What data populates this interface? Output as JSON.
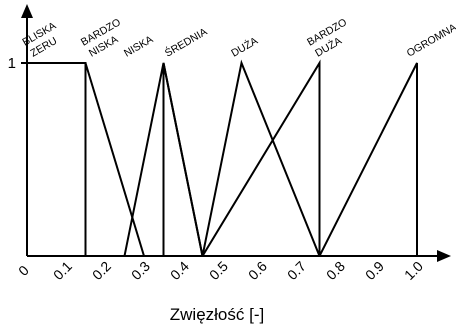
{
  "chart_data": {
    "type": "line",
    "xlabel": "Zwięzłość [-]",
    "xlim": [
      0,
      1
    ],
    "ylim": [
      0,
      1
    ],
    "x_ticks": [
      "0",
      "0.1",
      "0.2",
      "0.3",
      "0.4",
      "0.5",
      "0.6",
      "0.7",
      "0.8",
      "0.9",
      "1.0"
    ],
    "y_ticks": [
      "1"
    ],
    "grid": false,
    "series": [
      {
        "name": "BLISKA ZERU",
        "points": [
          [
            0,
            0
          ],
          [
            0,
            1
          ],
          [
            0.15,
            1
          ],
          [
            0.15,
            0
          ]
        ]
      },
      {
        "name": "BARDZO NISKA",
        "points": [
          [
            0.15,
            1
          ],
          [
            0.3,
            0
          ]
        ]
      },
      {
        "name": "NISKA",
        "points": [
          [
            0.25,
            0
          ],
          [
            0.35,
            1
          ],
          [
            0.45,
            0
          ]
        ]
      },
      {
        "name": "ŚREDNIA",
        "points": [
          [
            0.35,
            0
          ],
          [
            0.35,
            1
          ],
          [
            0.45,
            0
          ]
        ]
      },
      {
        "name": "DUŻA",
        "points": [
          [
            0.45,
            0
          ],
          [
            0.55,
            1
          ],
          [
            0.75,
            0
          ]
        ]
      },
      {
        "name": "BARDZO DUŻA",
        "points": [
          [
            0.45,
            0
          ],
          [
            0.75,
            1
          ],
          [
            0.75,
            0
          ]
        ]
      },
      {
        "name": "OGROMNA",
        "points": [
          [
            0.75,
            0
          ],
          [
            1.0,
            1
          ],
          [
            1.0,
            0
          ]
        ]
      }
    ],
    "set_labels": [
      {
        "lines": [
          "BLISKA",
          "ZERU"
        ],
        "x": 0.01
      },
      {
        "lines": [
          "BARDZO",
          "NISKA"
        ],
        "x": 0.16
      },
      {
        "lines": [
          "NISKA"
        ],
        "x": 0.255
      },
      {
        "lines": [
          "ŚREDNIA"
        ],
        "x": 0.36
      },
      {
        "lines": [
          "DUŻA"
        ],
        "x": 0.53
      },
      {
        "lines": [
          "BARDZO",
          "DUŻA"
        ],
        "x": 0.74
      },
      {
        "lines": [
          "OGROMNA"
        ],
        "x": 0.98
      }
    ],
    "colors": {
      "line": "#000000",
      "background": "#ffffff"
    }
  }
}
